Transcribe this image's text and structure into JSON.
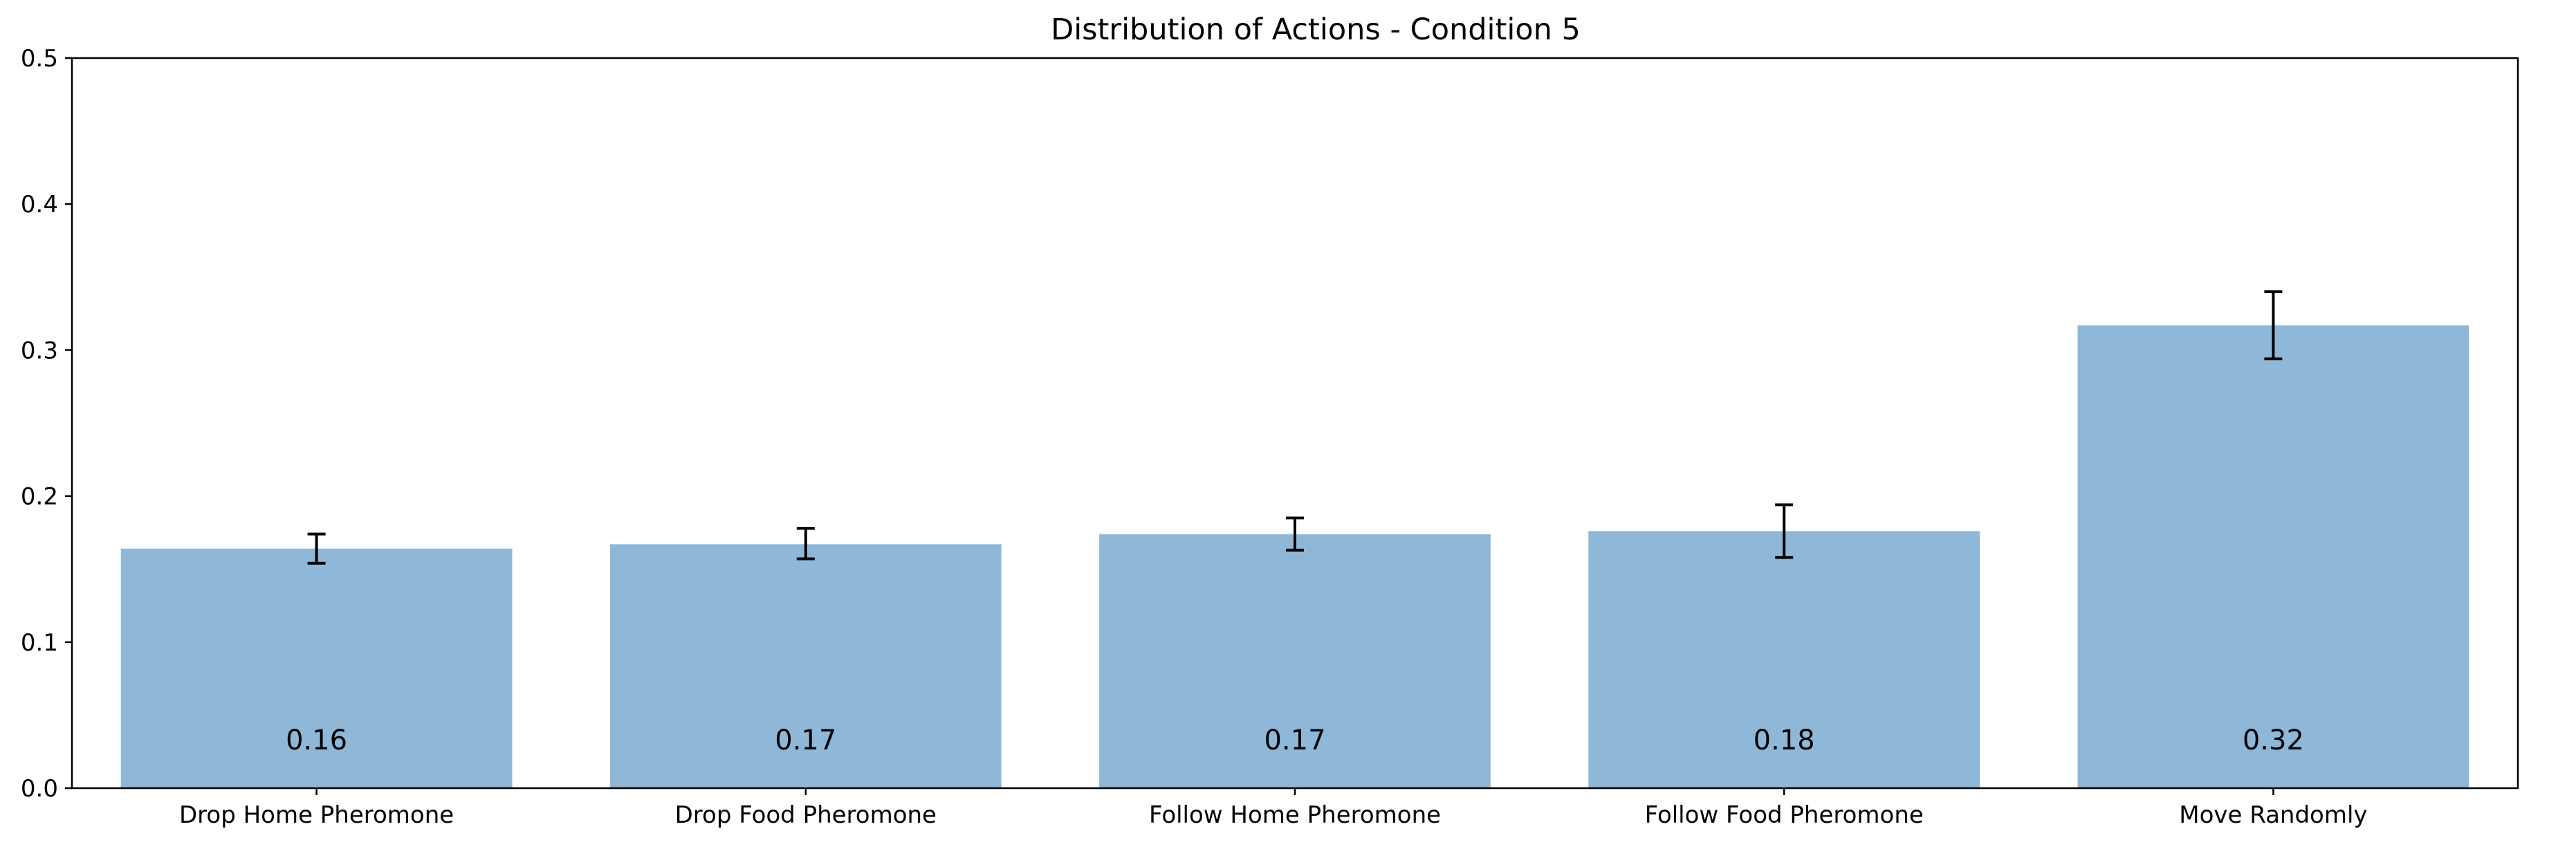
{
  "chart_data": {
    "type": "bar",
    "title": "Distribution of Actions - Condition 5",
    "xlabel": "",
    "ylabel": "",
    "categories": [
      "Drop Home Pheromone",
      "Drop Food Pheromone",
      "Follow Home Pheromone",
      "Follow Food Pheromone",
      "Move Randomly"
    ],
    "values": [
      0.164,
      0.167,
      0.174,
      0.176,
      0.317
    ],
    "value_labels": [
      "0.16",
      "0.17",
      "0.17",
      "0.18",
      "0.32"
    ],
    "error_low": [
      0.154,
      0.157,
      0.163,
      0.158,
      0.294
    ],
    "error_high": [
      0.174,
      0.178,
      0.185,
      0.194,
      0.34
    ],
    "ylim": [
      0,
      0.5
    ],
    "yticks": [
      0.0,
      0.1,
      0.2,
      0.3,
      0.4,
      0.5
    ],
    "ytick_labels": [
      "0.0",
      "0.1",
      "0.2",
      "0.3",
      "0.4",
      "0.5"
    ],
    "grid": false,
    "legend": "none",
    "colors": {
      "bar": "#8fb8d8",
      "error_bar": "#000000",
      "axis": "#000000",
      "text": "#000000"
    }
  }
}
